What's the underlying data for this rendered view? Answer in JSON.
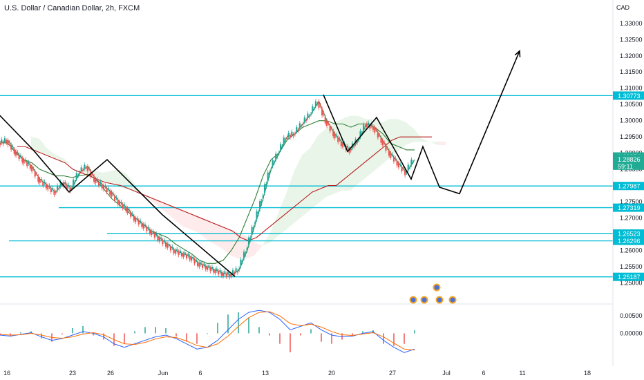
{
  "title": "U.S. Dollar / Canadian Dollar, 2h, FXCM",
  "chart_data": {
    "type": "line",
    "title": "U.S. Dollar / Canadian Dollar, 2h, FXCM",
    "currency": "CAD",
    "ylim": [
      1.2435,
      1.3372
    ],
    "y_ticks": [
      "1.33000",
      "1.32500",
      "1.32000",
      "1.31500",
      "1.31000",
      "1.30500",
      "1.30000",
      "1.29500",
      "1.29000",
      "1.28500",
      "1.28000",
      "1.27500",
      "1.27000",
      "1.26500",
      "1.26000",
      "1.25500",
      "1.25000"
    ],
    "x_ticks": [
      "16",
      "23",
      "26",
      "Jun",
      "6",
      "13",
      "20",
      "27",
      "Jul",
      "6",
      "11",
      "18"
    ],
    "levels": [
      {
        "label": "1.30773",
        "value": 1.30773
      },
      {
        "label": "1.27987",
        "value": 1.27987
      },
      {
        "label": "1.27319",
        "value": 1.27319
      },
      {
        "label": "1.26523",
        "value": 1.26523
      },
      {
        "label": "1.26296",
        "value": 1.26296
      },
      {
        "label": "1.25187",
        "value": 1.25187
      }
    ],
    "last_price": {
      "label": "1.28826",
      "value": 1.28826,
      "countdown": "59:11"
    },
    "marker_price": {
      "label": "1.28854",
      "value": 1.28854
    },
    "series": [
      {
        "values": [
          1.293,
          1.294,
          1.2905,
          1.288,
          1.286,
          1.282,
          1.28,
          1.278,
          1.281,
          1.279,
          1.284,
          1.286,
          1.282,
          1.28,
          1.278,
          1.275,
          1.273,
          1.27,
          1.268,
          1.266,
          1.264,
          1.262,
          1.26,
          1.259,
          1.258,
          1.256,
          1.255,
          1.254,
          1.253,
          1.2525,
          1.254,
          1.26,
          1.268,
          1.276,
          1.285,
          1.29,
          1.295,
          1.296,
          1.299,
          1.302,
          1.306,
          1.3,
          1.296,
          1.293,
          1.291,
          1.294,
          1.299,
          1.298,
          1.294,
          1.29,
          1.287,
          1.284,
          1.288
        ]
      },
      {
        "values": [
          1.2935,
          1.293,
          1.29,
          1.288,
          1.287,
          1.285,
          1.284,
          1.283,
          1.283,
          1.2825,
          1.283,
          1.2835,
          1.282,
          1.279,
          1.276,
          1.274,
          1.272,
          1.27,
          1.268,
          1.266,
          1.265,
          1.264,
          1.262,
          1.2605,
          1.259,
          1.257,
          1.256,
          1.256,
          1.257,
          1.26,
          1.264,
          1.27,
          1.276,
          1.283,
          1.288,
          1.29,
          1.294,
          1.296,
          1.298,
          1.299,
          1.3,
          1.3,
          1.299,
          1.299,
          1.298,
          1.299,
          1.299,
          1.298,
          1.296,
          1.293,
          1.292,
          1.291,
          1.291
        ]
      },
      {
        "values": [
          1.292,
          1.292,
          1.291,
          1.29,
          1.289,
          1.288,
          1.287,
          1.285,
          1.284,
          1.283,
          1.282,
          1.281,
          1.2805,
          1.28,
          1.279,
          1.278,
          1.277,
          1.276,
          1.275,
          1.274,
          1.273,
          1.272,
          1.271,
          1.27,
          1.269,
          1.268,
          1.267,
          1.266,
          1.264,
          1.263,
          1.264,
          1.266,
          1.268,
          1.27,
          1.272,
          1.274,
          1.276,
          1.278,
          1.279,
          1.28,
          1.28,
          1.282,
          1.284,
          1.286,
          1.288,
          1.29,
          1.292,
          1.294,
          1.295,
          1.295,
          1.295,
          1.295,
          1.295
        ]
      }
    ],
    "zigzag_down_1": [
      [
        -2,
        1.302
      ],
      [
        48,
        1.291
      ],
      [
        100,
        1.278
      ],
      [
        155,
        1.288
      ],
      [
        235,
        1.271
      ],
      [
        340,
        1.252
      ]
    ],
    "zigzag_up": [
      [
        468,
        1.308
      ],
      [
        503,
        1.2905
      ],
      [
        545,
        1.301
      ],
      [
        595,
        1.282
      ],
      [
        612,
        1.292
      ],
      [
        636,
        1.2795
      ],
      [
        665,
        1.2775
      ],
      [
        752,
        1.3215
      ]
    ],
    "macd": {
      "ylim": [
        -0.009,
        0.008
      ],
      "ticks": [
        "0.00500",
        "0.00000"
      ],
      "macd_line": [
        -0.0005,
        -0.0008,
        -0.0003,
        0.0002,
        -0.001,
        -0.002,
        -0.0015,
        -0.0005,
        0.0005,
        0.0,
        -0.001,
        -0.003,
        -0.004,
        -0.003,
        -0.002,
        -0.001,
        -0.0005,
        -0.0015,
        -0.003,
        -0.0045,
        -0.004,
        -0.002,
        0.001,
        0.004,
        0.006,
        0.0066,
        0.006,
        0.004,
        0.001,
        0.002,
        0.003,
        0.001,
        -0.0005,
        -0.001,
        -0.0008,
        0.0,
        0.0005,
        -0.002,
        -0.004,
        -0.0055,
        -0.0045
      ],
      "signal_line": [
        -0.0003,
        -0.0005,
        -0.0004,
        0.0,
        -0.0005,
        -0.0012,
        -0.0014,
        -0.001,
        -0.0002,
        0.0002,
        -0.0004,
        -0.0018,
        -0.003,
        -0.0032,
        -0.0026,
        -0.0016,
        -0.001,
        -0.0012,
        -0.0022,
        -0.0035,
        -0.004,
        -0.003,
        -0.0008,
        0.002,
        0.0045,
        0.006,
        0.0062,
        0.005,
        0.0028,
        0.0022,
        0.0026,
        0.0018,
        0.0005,
        -0.0004,
        -0.0006,
        -0.0002,
        0.0002,
        -0.001,
        -0.0028,
        -0.0045,
        -0.0048
      ]
    }
  }
}
